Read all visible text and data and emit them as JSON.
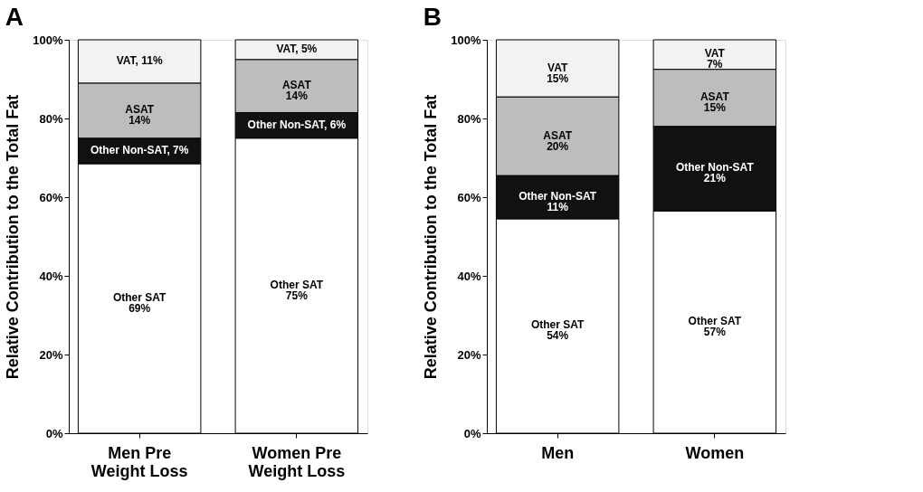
{
  "chart_data": [
    {
      "type": "bar",
      "stacked": true,
      "title": "A",
      "ylabel": "Relative Contribution to the Total Fat",
      "categories": [
        "Men Pre\nWeight Loss",
        "Women Pre\nWeight Loss"
      ],
      "series": [
        {
          "color": "#ffffff",
          "values": [
            68.5,
            75
          ],
          "value_labels": [
            "Other SAT\n69%",
            "Other SAT\n75%"
          ]
        },
        {
          "color": "#111111",
          "values": [
            6.5,
            6.5
          ],
          "value_labels": [
            "Other Non-SAT, 7%",
            "Other Non-SAT, 6%"
          ]
        },
        {
          "color": "#bdbdbd",
          "values": [
            14,
            13.5
          ],
          "value_labels": [
            "ASAT\n14%",
            "ASAT\n14%"
          ]
        },
        {
          "color": "#f2f2f2",
          "values": [
            11,
            5
          ],
          "value_labels": [
            "VAT, 11%",
            "VAT, 5%"
          ]
        }
      ],
      "ylim": [
        0,
        100
      ],
      "yticks": [
        {
          "value": 0,
          "label": "0%"
        },
        {
          "value": 20,
          "label": "20%"
        },
        {
          "value": 40,
          "label": "40%"
        },
        {
          "value": 60,
          "label": "60%"
        },
        {
          "value": 80,
          "label": "80%"
        },
        {
          "value": 100,
          "label": "100%"
        }
      ],
      "grid": false
    },
    {
      "type": "bar",
      "stacked": true,
      "title": "B",
      "ylabel": "Relative Contribution to the Total Fat",
      "categories": [
        "Men",
        "Women"
      ],
      "series": [
        {
          "color": "#ffffff",
          "values": [
            54.5,
            56.5
          ],
          "value_labels": [
            "Other SAT\n54%",
            "Other SAT\n57%"
          ]
        },
        {
          "color": "#111111",
          "values": [
            11,
            21.5
          ],
          "value_labels": [
            "Other Non-SAT\n11%",
            "Other Non-SAT\n21%"
          ]
        },
        {
          "color": "#bdbdbd",
          "values": [
            20,
            14.5
          ],
          "value_labels": [
            "ASAT\n20%",
            "ASAT\n15%"
          ]
        },
        {
          "color": "#f2f2f2",
          "values": [
            14.5,
            7.5
          ],
          "value_labels": [
            "VAT\n15%",
            "VAT\n7%"
          ]
        }
      ],
      "ylim": [
        0,
        100
      ],
      "yticks": [
        {
          "value": 0,
          "label": "0%"
        },
        {
          "value": 20,
          "label": "20%"
        },
        {
          "value": 40,
          "label": "40%"
        },
        {
          "value": 60,
          "label": "60%"
        },
        {
          "value": 80,
          "label": "80%"
        },
        {
          "value": 100,
          "label": "100%"
        }
      ],
      "grid": false
    }
  ]
}
